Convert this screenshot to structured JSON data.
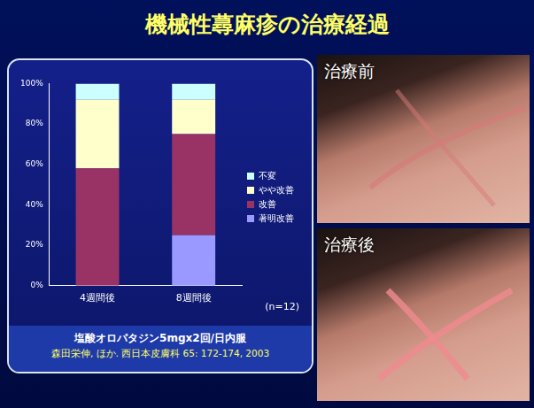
{
  "chart_data": {
    "type": "bar",
    "title": "機械性蕁麻疹の治療経過",
    "categories": [
      "4週間後",
      "8週間後"
    ],
    "series": [
      {
        "name": "著明改善",
        "color": "#9999ff",
        "values": [
          0,
          25
        ]
      },
      {
        "name": "改善",
        "color": "#993366",
        "values": [
          58,
          50
        ]
      },
      {
        "name": "やや改善",
        "color": "#ffffcc",
        "values": [
          34,
          17
        ]
      },
      {
        "name": "不変",
        "color": "#ccffff",
        "values": [
          8,
          8
        ]
      }
    ],
    "stacked": true,
    "ylim": [
      0,
      100
    ],
    "yticks": [
      {
        "value": 0,
        "label": "0%"
      },
      {
        "value": 20,
        "label": "20%"
      },
      {
        "value": 40,
        "label": "40%"
      },
      {
        "value": 60,
        "label": "60%"
      },
      {
        "value": 80,
        "label": "80%"
      },
      {
        "value": 100,
        "label": "100%"
      }
    ],
    "grid": false,
    "legend": "right",
    "annotations": [
      "(n=12)",
      "塩酸オロパタジン5mgx2回/日内服",
      "森田栄伸, ほか. 西日本皮膚科 65: 172-174, 2003"
    ]
  },
  "photos": [
    {
      "label": "治療前"
    },
    {
      "label": "治療後"
    }
  ]
}
